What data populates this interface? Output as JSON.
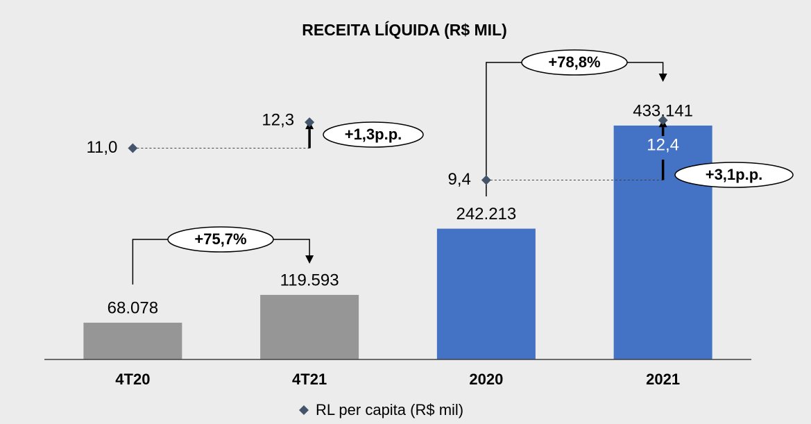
{
  "chart_data": {
    "type": "bar",
    "title": "RECEITA LÍQUIDA (R$ MIL)",
    "categories": [
      "4T20",
      "4T21",
      "2020",
      "2021"
    ],
    "values": [
      68078,
      119593,
      242213,
      433141
    ],
    "value_labels": [
      "68.078",
      "119.593",
      "242.213",
      "433.141"
    ],
    "colors": [
      "#969696",
      "#969696",
      "#4472c4",
      "#4472c4"
    ],
    "ylim": [
      0,
      550000
    ],
    "y2lim": [
      0.4,
      15.3
    ],
    "series": [
      {
        "name": "RL per capita (R$ mil)",
        "type": "scatter",
        "axis": "y2",
        "color": "#44546a",
        "values": [
          11.0,
          12.3,
          9.4,
          12.4
        ],
        "value_labels": [
          "11,0",
          "12,3",
          "9,4",
          "12,4"
        ]
      }
    ],
    "annotations": [
      "+75,7%",
      "+1,3p.p.",
      "+78,8%",
      "+3,1p.p."
    ],
    "legend": "bottom"
  }
}
